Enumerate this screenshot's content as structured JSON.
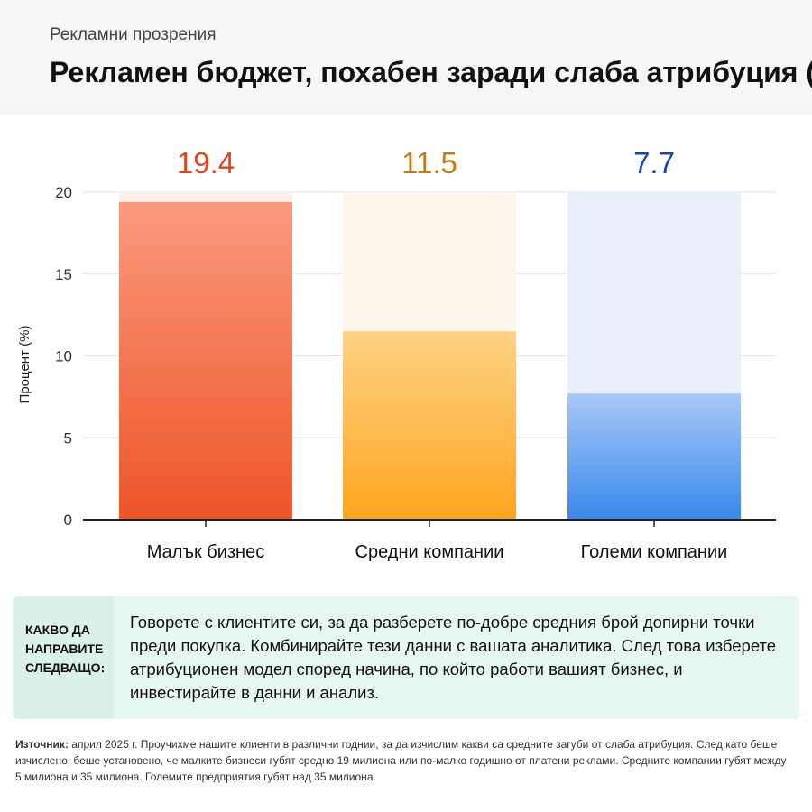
{
  "header": {
    "kicker": "Рекламни прозрения",
    "title": "Рекламен бюджет, похабен заради слаба атрибуция (%)"
  },
  "chart_data": {
    "type": "bar",
    "title": "Рекламен бюджет, похабен заради слаба атрибуция (%)",
    "xlabel": "",
    "ylabel": "Процент (%)",
    "categories": [
      "Малък бизнес",
      "Средни компании",
      "Големи компании"
    ],
    "values": [
      19.4,
      11.5,
      7.7
    ],
    "value_labels": [
      "19.4",
      "11.5",
      "7.7"
    ],
    "ylim": [
      0,
      20
    ],
    "yticks": [
      0,
      5,
      10,
      15,
      20
    ],
    "grid": true,
    "legend": "none",
    "colors": {
      "bars_top": [
        "#f99a7e",
        "#fdd283",
        "#a8c9f7"
      ],
      "bars_bottom": [
        "#ee5428",
        "#fea51f",
        "#3a88ea"
      ],
      "tracks": [
        "#fdf1ec",
        "#fef6ea",
        "#e9effa"
      ],
      "value_labels": [
        "#e2451c",
        "#c47d10",
        "#1a46a6"
      ]
    }
  },
  "callout": {
    "label": "КАКВО ДА НАПРАВИТЕ СЛЕДВАЩО:",
    "text": "Говорете с клиентите си, за да разберете по-добре средния брой допирни точки преди покупка. Комбинирайте тези данни с вашата аналитика. След това изберете атрибуционен модел според начина, по който работи вашият бизнес, и инвестирайте в данни и анализ."
  },
  "source": {
    "label": "Източник:",
    "text": "април 2025 г. Проучихме нашите клиенти в различни годнии, за да изчислим какви са средните загуби от слаба атрибуция. След като беше изчислено, беше установено, че малките бизнеси губят средно 19 милиона или по-малко годишно от платени реклами. Средните компании губят между 5 милиона и 35 милиона. Големите предприятия губят над 35 милиона."
  }
}
